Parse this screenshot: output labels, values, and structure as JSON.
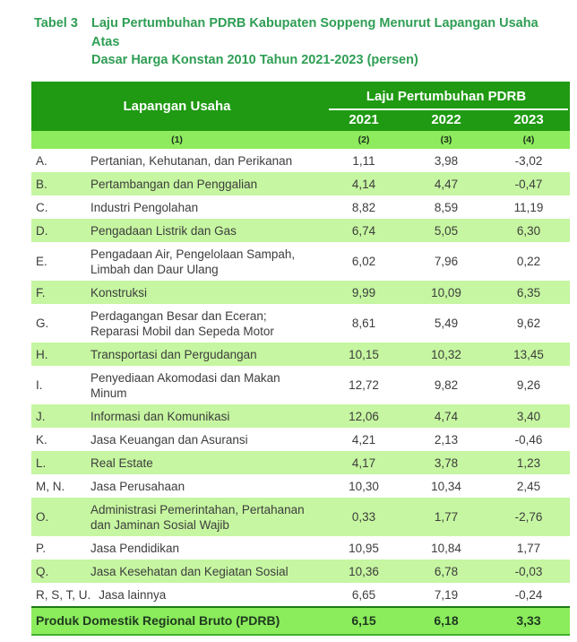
{
  "caption": {
    "label": "Tabel 3",
    "line1": "Laju Pertumbuhan PDRB Kabupaten Soppeng Menurut Lapangan Usaha Atas",
    "line2": "Dasar Harga Konstan 2010 Tahun 2021-2023 (persen)",
    "title_full": "Laju Pertumbuhan PDRB Kabupaten Soppeng Menurut Lapangan Usaha Atas Dasar Harga Konstan 2010 Tahun 2021-2023 (persen)"
  },
  "table": {
    "header": {
      "lapangan_usaha": "Lapangan Usaha",
      "group": "Laju Pertumbuhan PDRB",
      "years": [
        "2021",
        "2022",
        "2023"
      ],
      "col_nums": [
        "(1)",
        "(2)",
        "(3)",
        "(4)"
      ]
    },
    "rows": [
      {
        "code": "A.",
        "name": "Pertanian, Kehutanan, dan Perikanan",
        "values": [
          "1,11",
          "3,98",
          "-3,02"
        ]
      },
      {
        "code": "B.",
        "name": "Pertambangan dan Penggalian",
        "values": [
          "4,14",
          "4,47",
          "-0,47"
        ]
      },
      {
        "code": "C.",
        "name": "Industri Pengolahan",
        "values": [
          "8,82",
          "8,59",
          "11,19"
        ]
      },
      {
        "code": "D.",
        "name": "Pengadaan Listrik dan Gas",
        "values": [
          "6,74",
          "5,05",
          "6,30"
        ]
      },
      {
        "code": "E.",
        "name": "Pengadaan Air, Pengelolaan Sampah, Limbah dan Daur Ulang",
        "values": [
          "6,02",
          "7,96",
          "0,22"
        ]
      },
      {
        "code": "F.",
        "name": "Konstruksi",
        "values": [
          "9,99",
          "10,09",
          "6,35"
        ]
      },
      {
        "code": "G.",
        "name": "Perdagangan Besar dan Eceran; Reparasi Mobil dan Sepeda Motor",
        "values": [
          "8,61",
          "5,49",
          "9,62"
        ]
      },
      {
        "code": "H.",
        "name": "Transportasi dan Pergudangan",
        "values": [
          "10,15",
          "10,32",
          "13,45"
        ]
      },
      {
        "code": "I.",
        "name": "Penyediaan Akomodasi dan Makan Minum",
        "values": [
          "12,72",
          "9,82",
          "9,26"
        ]
      },
      {
        "code": "J.",
        "name": "Informasi dan Komunikasi",
        "values": [
          "12,06",
          "4,74",
          "3,40"
        ]
      },
      {
        "code": "K.",
        "name": "Jasa Keuangan dan Asuransi",
        "values": [
          "4,21",
          "2,13",
          "-0,46"
        ]
      },
      {
        "code": "L.",
        "name": "Real Estate",
        "values": [
          "4,17",
          "3,78",
          "1,23"
        ]
      },
      {
        "code": "M, N.",
        "name": "Jasa Perusahaan",
        "values": [
          "10,30",
          "10,34",
          "2,45"
        ]
      },
      {
        "code": "O.",
        "name": "Administrasi Pemerintahan, Pertahanan dan Jaminan Sosial Wajib",
        "values": [
          "0,33",
          "1,77",
          "-2,76"
        ]
      },
      {
        "code": "P.",
        "name": "Jasa Pendidikan",
        "values": [
          "10,95",
          "10,84",
          "1,77"
        ]
      },
      {
        "code": "Q.",
        "name": "Jasa Kesehatan dan Kegiatan Sosial",
        "values": [
          "10,36",
          "6,78",
          "-0,03"
        ]
      },
      {
        "code": "R, S, T, U.",
        "name": "Jasa lainnya",
        "values": [
          "6,65",
          "7,19",
          "-0,24"
        ]
      }
    ],
    "total": {
      "name": "Produk Domestik Regional Bruto (PDRB)",
      "values": [
        "6,15",
        "6,18",
        "3,33"
      ]
    }
  },
  "colors": {
    "title_green": "#2f9e54",
    "header_green": "#1f9a12",
    "subheader_green": "#8eeb5e",
    "zebra_green": "#c6f6a1",
    "total_green": "#8bec5c",
    "rule_green": "#1c7a12",
    "text_dark": "#3d3d3d"
  }
}
